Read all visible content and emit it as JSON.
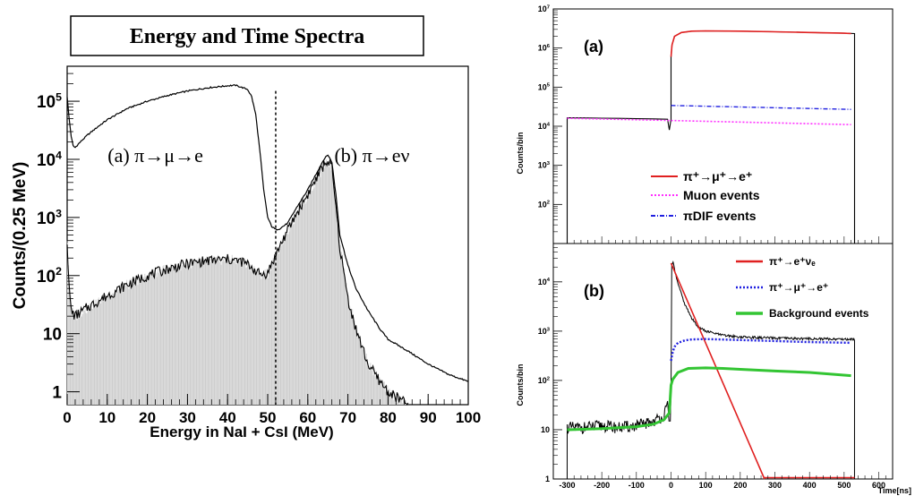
{
  "figure": {
    "title": "Energy and Time Spectra"
  },
  "colors": {
    "red": "#e02020",
    "magenta": "#ff30ff",
    "blue": "#2020e0",
    "green": "#33c533",
    "fill": "#d9d9d9",
    "black": "#000000"
  },
  "chart_data": [
    {
      "id": "energy",
      "type": "line",
      "title": "Energy and Time Spectra",
      "xlabel": "Energy in NaI + CsI (MeV)",
      "ylabel": "Counts/(0.25 MeV)",
      "xlim": [
        0,
        100
      ],
      "ylim": [
        0.6,
        400000
      ],
      "yscale": "log",
      "x_ticks": [
        0,
        10,
        20,
        30,
        40,
        50,
        60,
        70,
        80,
        90,
        100
      ],
      "y_ticks": [
        {
          "value": 1,
          "label": "1"
        },
        {
          "value": 10,
          "label": "10"
        },
        {
          "value": 100,
          "label": "10",
          "sup": "2"
        },
        {
          "value": 1000,
          "label": "10",
          "sup": "3"
        },
        {
          "value": 10000,
          "label": "10",
          "sup": "4"
        },
        {
          "value": 100000,
          "label": "10",
          "sup": "5"
        }
      ],
      "cut_line_x": 52,
      "annotations": [
        {
          "text": "(a) π→μ→e",
          "x": 22,
          "y": 12000
        },
        {
          "text": "(b) π→eν",
          "x": 76,
          "y": 12000
        }
      ],
      "series": [
        {
          "role": "pi-mu-e",
          "x": [
            0,
            0.5,
            1,
            1.5,
            2,
            3,
            5,
            8,
            10,
            15,
            20,
            25,
            30,
            35,
            40,
            42,
            45,
            46,
            47,
            48,
            49,
            50,
            51,
            52,
            53,
            55,
            57,
            60,
            62,
            64,
            65,
            66,
            67,
            68,
            70,
            72,
            75,
            78,
            80,
            85,
            90,
            95,
            100
          ],
          "y": [
            120000,
            50000,
            25000,
            17000,
            16000,
            19000,
            26000,
            38000,
            48000,
            75000,
            100000,
            125000,
            150000,
            170000,
            185000,
            188000,
            160000,
            120000,
            60000,
            15000,
            3000,
            1000,
            700,
            620,
            640,
            800,
            1400,
            3000,
            5500,
            10000,
            12000,
            9000,
            2500,
            500,
            150,
            60,
            25,
            12,
            8,
            5,
            3,
            2,
            1.5
          ]
        },
        {
          "role": "pi-e-nu",
          "x": [
            0,
            0.5,
            1,
            2,
            5,
            10,
            15,
            20,
            25,
            30,
            35,
            40,
            44,
            46,
            48,
            50,
            51,
            52,
            53,
            55,
            57,
            60,
            62,
            64,
            65,
            66,
            67,
            68,
            70,
            72,
            75,
            78,
            80,
            85
          ],
          "y": [
            400,
            60,
            25,
            20,
            28,
            45,
            70,
            100,
            130,
            160,
            180,
            190,
            170,
            140,
            105,
            110,
            160,
            220,
            320,
            600,
            1100,
            2500,
            4500,
            8000,
            9500,
            7000,
            1500,
            300,
            40,
            12,
            3,
            1.5,
            1,
            0.6
          ]
        }
      ]
    },
    {
      "id": "time-a",
      "type": "line",
      "panel_label": "(a)",
      "ylabel": "Counts/bin",
      "xlim": [
        -340,
        640
      ],
      "ylim": [
        10,
        10000000
      ],
      "yscale": "log",
      "y_ticks": [
        {
          "value": 100,
          "label": "10",
          "sup": "2"
        },
        {
          "value": 1000,
          "label": "10",
          "sup": "3"
        },
        {
          "value": 10000,
          "label": "10",
          "sup": "4"
        },
        {
          "value": 100000,
          "label": "10",
          "sup": "5"
        },
        {
          "value": 1000000,
          "label": "10",
          "sup": "6"
        },
        {
          "value": 10000000,
          "label": "10",
          "sup": "7"
        }
      ],
      "legend": [
        {
          "text": "π⁺→μ⁺→e⁺",
          "color": "#e02020",
          "style": "solid"
        },
        {
          "text": "Muon events",
          "color": "#ff30ff",
          "style": "dotted"
        },
        {
          "text": "πDIF events",
          "color": "#2020e0",
          "style": "dashdot"
        }
      ],
      "series": [
        {
          "role": "data",
          "x": [
            -300,
            -300,
            -250,
            -200,
            -150,
            -100,
            -50,
            -10,
            -5,
            0,
            0,
            3,
            10,
            30,
            60,
            100,
            200,
            300,
            400,
            500,
            530,
            530
          ],
          "y": [
            10,
            16500,
            16300,
            16100,
            15900,
            15600,
            15400,
            15100,
            8000,
            15000,
            600000,
            1200000,
            2000000,
            2500000,
            2700000,
            2750000,
            2700000,
            2600000,
            2500000,
            2400000,
            2350000,
            10
          ]
        },
        {
          "role": "pi-mu-e-fit",
          "x": [
            0,
            3,
            10,
            30,
            60,
            100,
            200,
            300,
            400,
            500,
            520
          ],
          "y": [
            600000,
            1200000,
            2000000,
            2500000,
            2700000,
            2750000,
            2700000,
            2600000,
            2500000,
            2400000,
            2350000
          ]
        },
        {
          "role": "muon",
          "x": [
            -300,
            0,
            520
          ],
          "y": [
            16000,
            14000,
            11000
          ]
        },
        {
          "role": "pi-dif",
          "x": [
            0,
            520
          ],
          "y": [
            34000,
            27000
          ]
        }
      ]
    },
    {
      "id": "time-b",
      "type": "line",
      "panel_label": "(b)",
      "ylabel": "Counts/bin",
      "xlabel": "Time[ns]",
      "xlim": [
        -340,
        640
      ],
      "ylim": [
        1,
        60000
      ],
      "yscale": "log",
      "x_ticks": [
        -300,
        -200,
        -100,
        0,
        100,
        200,
        300,
        400,
        500,
        600
      ],
      "y_ticks": [
        {
          "value": 1,
          "label": "1"
        },
        {
          "value": 10,
          "label": "10"
        },
        {
          "value": 100,
          "label": "10",
          "sup": "2"
        },
        {
          "value": 1000,
          "label": "10",
          "sup": "3"
        },
        {
          "value": 10000,
          "label": "10",
          "sup": "4"
        }
      ],
      "legend": [
        {
          "text": "π⁺→e⁺νₑ",
          "color": "#e02020",
          "style": "solid"
        },
        {
          "text": "π⁺→μ⁺→e⁺",
          "color": "#2020e0",
          "style": "dotted"
        },
        {
          "text": "Background events",
          "color": "#33c533",
          "style": "solid"
        }
      ],
      "series": [
        {
          "role": "data",
          "x": [
            -300,
            -300,
            -250,
            -200,
            -150,
            -100,
            -60,
            -40,
            -20,
            -10,
            -5,
            0,
            0,
            5,
            10,
            20,
            40,
            60,
            80,
            100,
            150,
            200,
            300,
            400,
            500,
            530,
            530
          ],
          "y": [
            1,
            11,
            11,
            12,
            11,
            12,
            14,
            16,
            20,
            30,
            15,
            60,
            20000,
            26000,
            18000,
            9000,
            3500,
            1800,
            1200,
            1000,
            820,
            760,
            720,
            700,
            690,
            680,
            1
          ]
        },
        {
          "role": "pi-e-nu",
          "x": [
            0,
            270
          ],
          "y": [
            24000,
            1
          ]
        },
        {
          "role": "pi-mu-e",
          "x": [
            0,
            5,
            10,
            20,
            40,
            60,
            100,
            200,
            300,
            400,
            520
          ],
          "y": [
            250,
            380,
            480,
            580,
            650,
            680,
            690,
            660,
            630,
            600,
            580
          ]
        },
        {
          "role": "background",
          "x": [
            -300,
            -200,
            -100,
            -50,
            -20,
            -5,
            0,
            5,
            20,
            50,
            100,
            150,
            200,
            300,
            400,
            520
          ],
          "y": [
            10,
            10.5,
            11.5,
            13,
            16,
            22,
            80,
            105,
            145,
            175,
            180,
            175,
            168,
            155,
            145,
            125
          ]
        }
      ]
    }
  ]
}
